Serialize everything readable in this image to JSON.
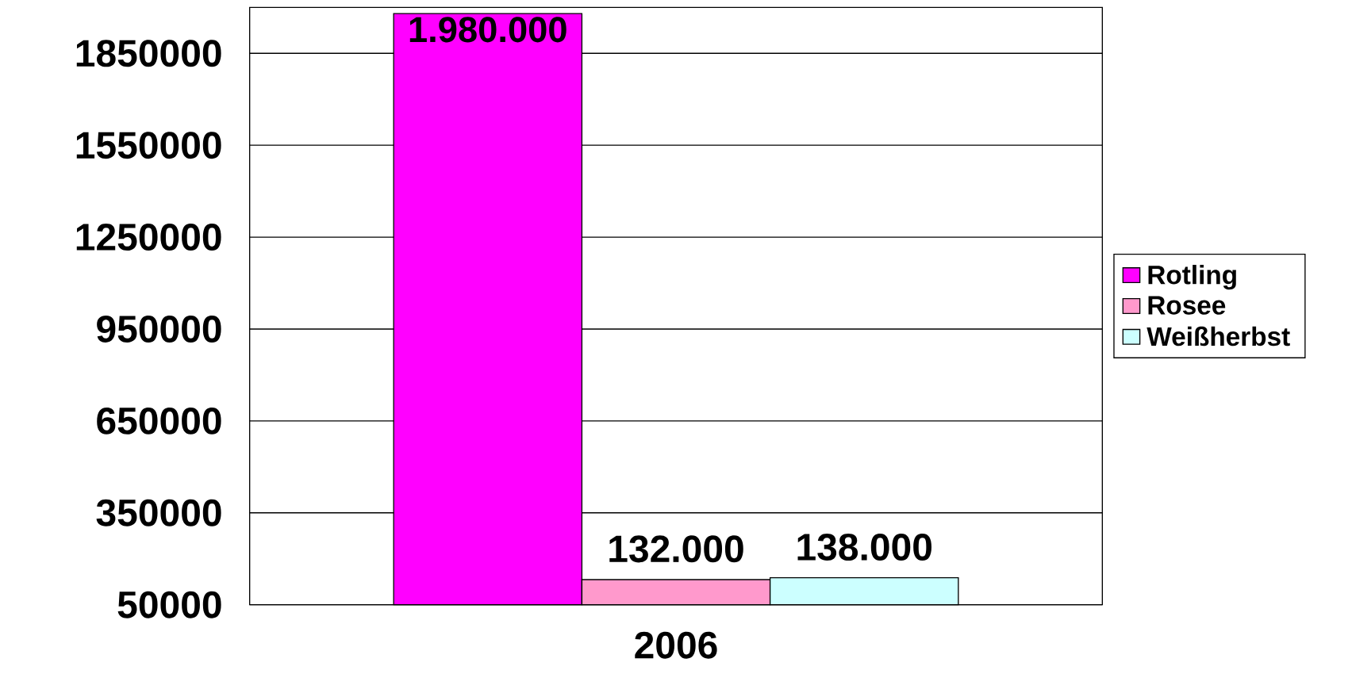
{
  "chart_data": {
    "type": "bar",
    "categories": [
      "2006"
    ],
    "series": [
      {
        "name": "Rotling",
        "color": "#ff00ff",
        "values": [
          1980000
        ],
        "value_labels": [
          "1.980.000"
        ]
      },
      {
        "name": "Rosee",
        "color": "#ff99cc",
        "values": [
          132000
        ],
        "value_labels": [
          "132.000"
        ]
      },
      {
        "name": "Weißherbst",
        "color": "#ccffff",
        "values": [
          138000
        ],
        "value_labels": [
          "138.000"
        ]
      }
    ],
    "ylim": [
      50000,
      2000000
    ],
    "yticks": [
      50000,
      350000,
      650000,
      950000,
      1250000,
      1550000,
      1850000
    ],
    "grid": "y",
    "legend": "right"
  }
}
